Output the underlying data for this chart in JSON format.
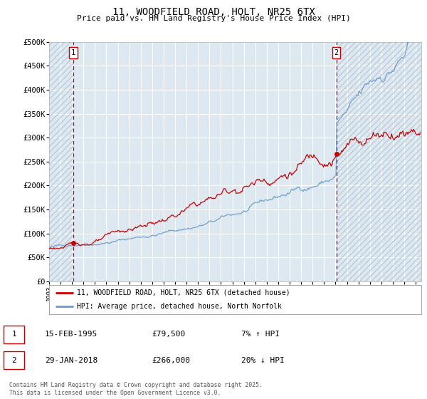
{
  "title": "11, WOODFIELD ROAD, HOLT, NR25 6TX",
  "subtitle": "Price paid vs. HM Land Registry's House Price Index (HPI)",
  "ylim": [
    0,
    500000
  ],
  "xlim_start": 1993.0,
  "xlim_end": 2025.5,
  "sale1_date": 1995.12,
  "sale1_price": 79500,
  "sale1_label": "1",
  "sale2_date": 2018.08,
  "sale2_price": 266000,
  "sale2_label": "2",
  "legend_line1": "11, WOODFIELD ROAD, HOLT, NR25 6TX (detached house)",
  "legend_line2": "HPI: Average price, detached house, North Norfolk",
  "annotation1_date": "15-FEB-1995",
  "annotation1_price": "£79,500",
  "annotation1_hpi": "7% ↑ HPI",
  "annotation2_date": "29-JAN-2018",
  "annotation2_price": "£266,000",
  "annotation2_hpi": "20% ↓ HPI",
  "footnote": "Contains HM Land Registry data © Crown copyright and database right 2025.\nThis data is licensed under the Open Government Licence v3.0.",
  "line_color_red": "#cc0000",
  "line_color_blue": "#6699cc",
  "bg_color": "#dde8f0",
  "grid_color": "#ffffff",
  "hatch_color": "#bbccdd"
}
